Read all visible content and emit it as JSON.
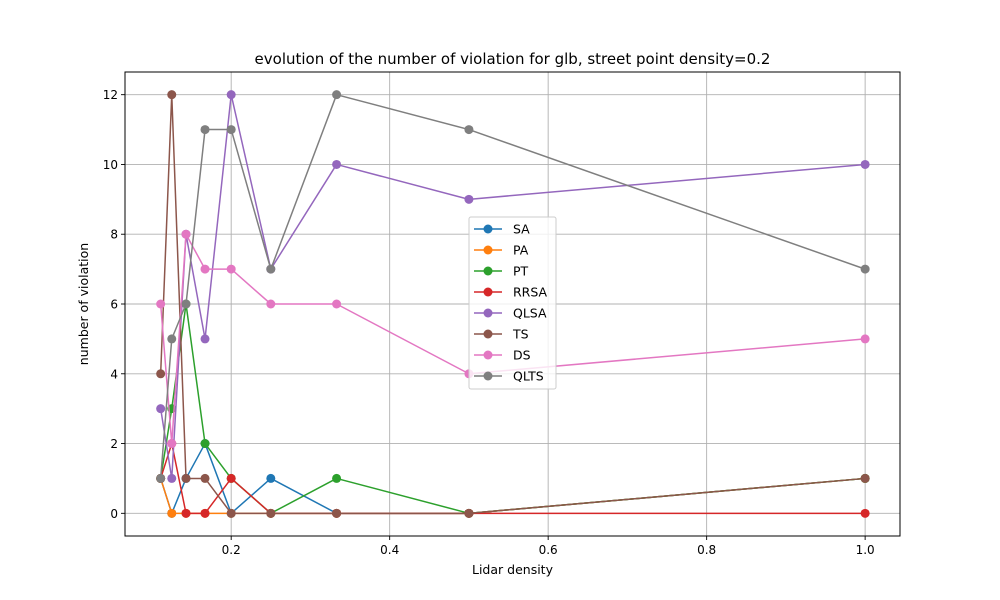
{
  "chart_data": {
    "type": "line",
    "title": "evolution of the number of violation for glb, street point density=0.2",
    "xlabel": "Lidar density",
    "ylabel": "number of violation",
    "xlim": [
      0.066,
      1.044
    ],
    "ylim": [
      -0.65,
      12.65
    ],
    "xticks": [
      0.2,
      0.4,
      0.6,
      0.8,
      1.0
    ],
    "xtick_labels": [
      "0.2",
      "0.4",
      "0.6",
      "0.8",
      "1.0"
    ],
    "yticks": [
      0,
      2,
      4,
      6,
      8,
      10,
      12
    ],
    "ytick_labels": [
      "0",
      "2",
      "4",
      "6",
      "8",
      "10",
      "12"
    ],
    "grid": true,
    "legend_position": "center",
    "x": [
      0.111,
      0.125,
      0.143,
      0.167,
      0.2,
      0.25,
      0.333,
      0.5,
      1.0
    ],
    "series": [
      {
        "name": "SA",
        "color": "#1f77b4",
        "values": [
          1,
          0,
          1,
          2,
          0,
          1,
          0,
          0,
          1
        ]
      },
      {
        "name": "PA",
        "color": "#ff7f0e",
        "values": [
          1,
          0,
          0,
          0,
          0,
          0,
          0,
          0,
          1
        ]
      },
      {
        "name": "PT",
        "color": "#2ca02c",
        "values": [
          1,
          3,
          6,
          2,
          1,
          0,
          1,
          0,
          1
        ]
      },
      {
        "name": "RRSA",
        "color": "#d62728",
        "values": [
          1,
          2,
          0,
          0,
          1,
          0,
          0,
          0,
          0
        ]
      },
      {
        "name": "QLSA",
        "color": "#9467bd",
        "values": [
          3,
          1,
          8,
          5,
          12,
          7,
          10,
          9,
          10
        ]
      },
      {
        "name": "TS",
        "color": "#8c564b",
        "values": [
          4,
          12,
          1,
          1,
          0,
          0,
          0,
          0,
          1
        ]
      },
      {
        "name": "DS",
        "color": "#e377c2",
        "values": [
          6,
          2,
          8,
          7,
          7,
          6,
          6,
          4,
          5
        ]
      },
      {
        "name": "QLTS",
        "color": "#7f7f7f",
        "values": [
          1,
          5,
          6,
          11,
          11,
          7,
          12,
          11,
          7
        ]
      }
    ]
  }
}
